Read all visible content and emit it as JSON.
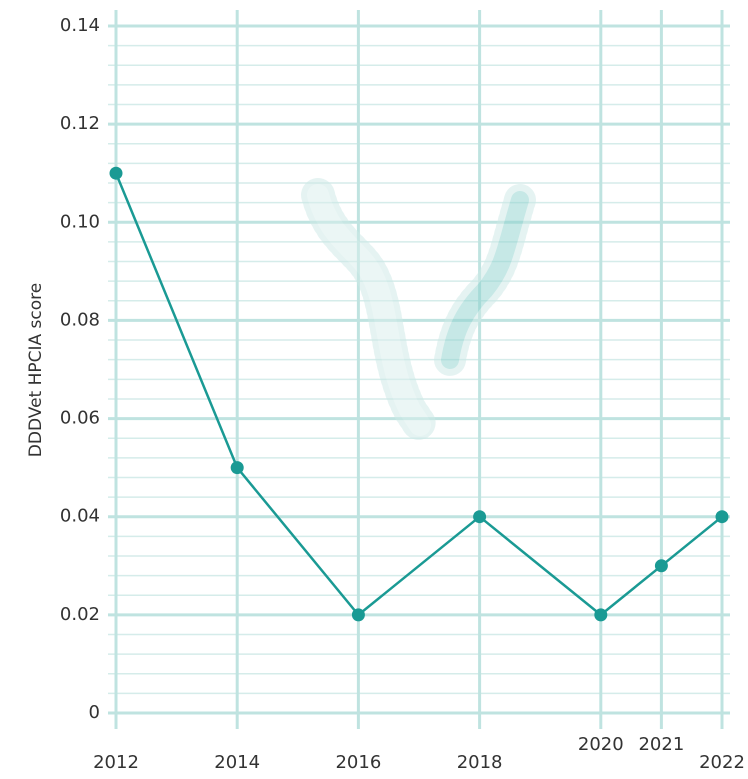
{
  "chart_data": {
    "type": "line",
    "y_label": "DDDVet HPCIA score",
    "x": [
      2012,
      2014,
      2016,
      2018,
      2020,
      2021,
      2022
    ],
    "series": [
      {
        "name": null,
        "color": "#1a9a94",
        "values": [
          0.11,
          0.05,
          0.02,
          0.04,
          0.02,
          0.03,
          0.04
        ]
      }
    ],
    "xlim": [
      2012,
      2022
    ],
    "xticks": [
      2012,
      2014,
      2016,
      2018,
      2020,
      2021,
      2022
    ],
    "ylim": [
      0,
      0.14
    ],
    "yticks": [
      0,
      0.02,
      0.04,
      0.06,
      0.08,
      {
        "value": 0.1,
        "label": "0.10"
      },
      0.12,
      0.14
    ],
    "grid": true
  }
}
